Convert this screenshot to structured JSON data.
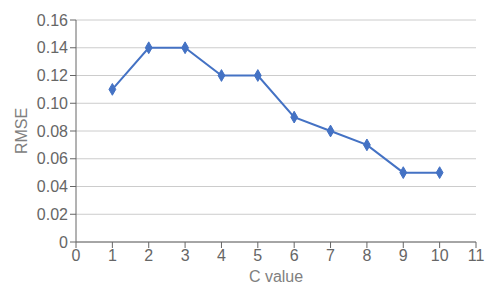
{
  "chart_data": {
    "type": "line",
    "x": [
      1,
      2,
      3,
      4,
      5,
      6,
      7,
      8,
      9,
      10
    ],
    "values": [
      0.11,
      0.14,
      0.14,
      0.12,
      0.12,
      0.09,
      0.08,
      0.07,
      0.05,
      0.05
    ],
    "xlabel": "C value",
    "ylabel": "RMSE",
    "xlim": [
      0,
      11
    ],
    "ylim": [
      0,
      0.16
    ],
    "xticks": [
      0,
      1,
      2,
      3,
      4,
      5,
      6,
      7,
      8,
      9,
      10,
      11
    ],
    "yticks": [
      0,
      0.02,
      0.04,
      0.06,
      0.08,
      {
        "value": 0.1,
        "label": "0.10"
      },
      0.12,
      0.14,
      0.16
    ],
    "color": "#4472C4",
    "marker": "diamond",
    "grid": true
  }
}
